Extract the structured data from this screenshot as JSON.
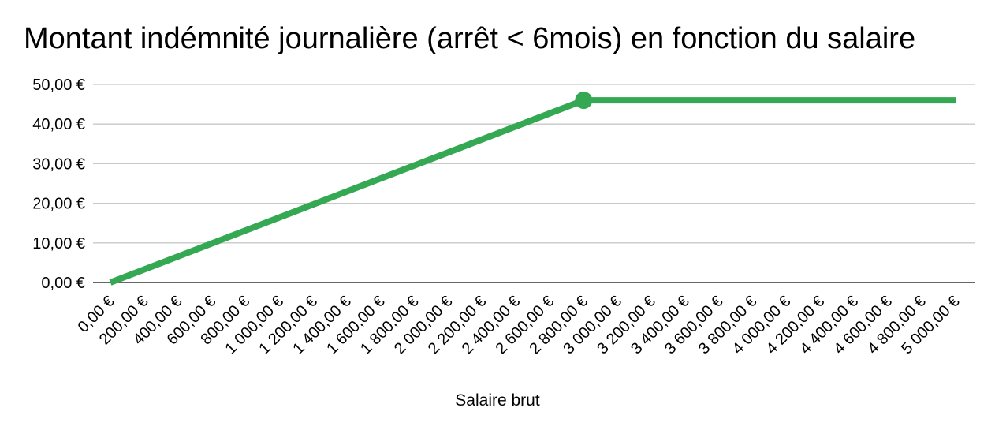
{
  "chart_data": {
    "type": "line",
    "title": "Montant indémnité journalière (arrêt < 6mois) en fonction du salaire",
    "xlabel": "Salaire brut",
    "ylabel": "",
    "xlim": [
      0,
      5000
    ],
    "ylim": [
      0,
      50
    ],
    "grid": true,
    "legend": "none",
    "y_ticks": [
      "0,00 €",
      "10,00 €",
      "20,00 €",
      "30,00 €",
      "40,00 €",
      "50,00 €"
    ],
    "y_tick_values": [
      0,
      10,
      20,
      30,
      40,
      50
    ],
    "x_ticks": [
      "0,00 €",
      "200,00 €",
      "400,00 €",
      "600,00 €",
      "800,00 €",
      "1 000,00 €",
      "1 200,00 €",
      "1 400,00 €",
      "1 600,00 €",
      "1 800,00 €",
      "2 000,00 €",
      "2 200,00 €",
      "2 400,00 €",
      "2 600,00 €",
      "2 800,00 €",
      "3 000,00 €",
      "3 200,00 €",
      "3 400,00 €",
      "3 600,00 €",
      "3 800,00 €",
      "4 000,00 €",
      "4 200,00 €",
      "4 400,00 €",
      "4 600,00 €",
      "4 800,00 €",
      "5 000,00 €"
    ],
    "x_tick_values": [
      0,
      200,
      400,
      600,
      800,
      1000,
      1200,
      1400,
      1600,
      1800,
      2000,
      2200,
      2400,
      2600,
      2800,
      3000,
      3200,
      3400,
      3600,
      3800,
      4000,
      4200,
      4400,
      4600,
      4800,
      5000
    ],
    "series": [
      {
        "color": "#34a853",
        "x": [
          0,
          2800,
          5000
        ],
        "y": [
          0,
          46,
          46
        ],
        "highlight_x": 2800,
        "highlight_y": 46
      }
    ]
  }
}
